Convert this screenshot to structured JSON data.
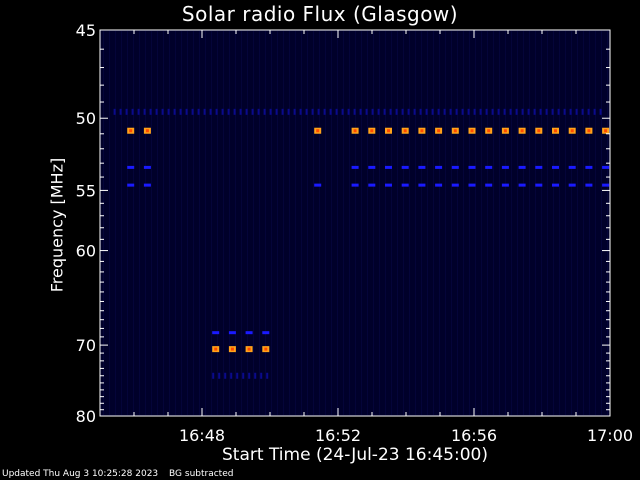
{
  "chart_data": {
    "type": "heatmap",
    "title": "Solar radio Flux (Glasgow)",
    "xlabel": "Start Time (24-Jul-23 16:45:00)",
    "ylabel": "Frequency [MHz]",
    "x_ticks": [
      "16:48",
      "16:52",
      "16:56",
      "17:00"
    ],
    "x_tick_minutes": [
      48,
      52,
      56,
      60
    ],
    "xlim_minutes": [
      45,
      60
    ],
    "y_ticks": [
      45,
      50,
      55,
      60,
      70,
      80
    ],
    "ylim": [
      45,
      80
    ],
    "y_scale": "reciprocal",
    "colors": {
      "background": "#000000",
      "plot_background": "#00002a",
      "high": "#ffa31a",
      "high_core": "#ff4a00",
      "medium": "#1a1aff",
      "low": "#0a0a8c"
    },
    "bands": [
      {
        "freq": 49.6,
        "level": "low",
        "segments": [
          [
            45.4,
            51.3
          ],
          [
            51.4,
            59.8
          ]
        ]
      },
      {
        "freq": 50.8,
        "level": "high",
        "segments": [
          [
            45.8,
            46.9
          ],
          [
            51.3,
            51.5
          ],
          [
            52.4,
            60.0
          ]
        ]
      },
      {
        "freq": 53.3,
        "level": "medium",
        "segments": [
          [
            45.8,
            46.9
          ],
          [
            52.4,
            60.0
          ]
        ]
      },
      {
        "freq": 54.6,
        "level": "medium",
        "segments": [
          [
            45.8,
            46.9
          ],
          [
            51.3,
            51.5
          ],
          [
            52.4,
            60.0
          ]
        ]
      },
      {
        "freq": 68.5,
        "level": "medium",
        "segments": [
          [
            48.3,
            50.0
          ]
        ]
      },
      {
        "freq": 70.5,
        "level": "high",
        "segments": [
          [
            48.3,
            50.0
          ]
        ]
      },
      {
        "freq": 74.0,
        "level": "low",
        "segments": [
          [
            48.3,
            50.0
          ]
        ]
      }
    ]
  },
  "footer": {
    "updated": "Updated Thu Aug  3 10:25:28 2023",
    "note": "BG subtracted"
  }
}
